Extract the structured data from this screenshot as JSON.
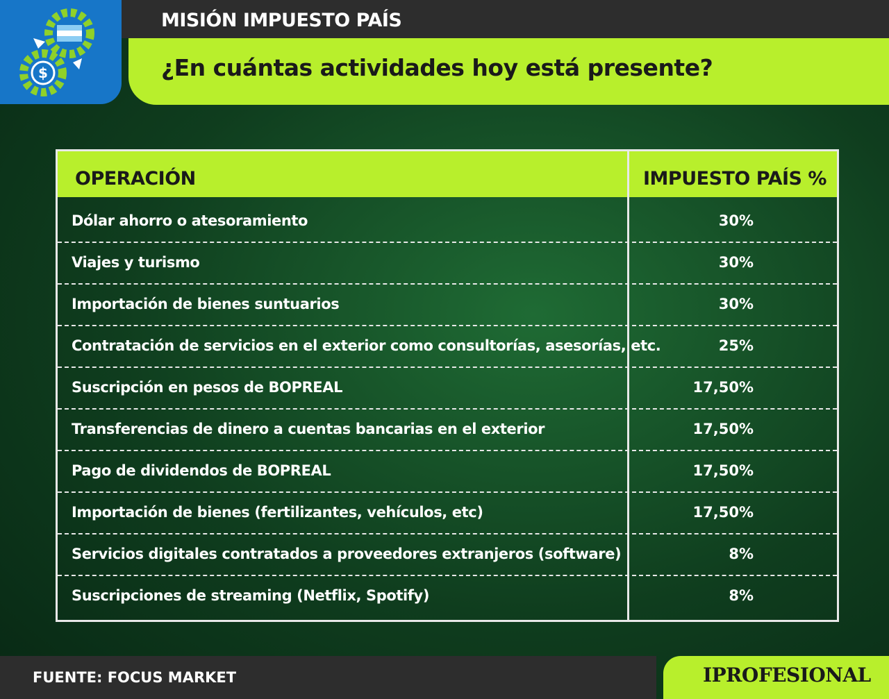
{
  "header": {
    "kicker": "MISIÓN IMPUESTO PAÍS",
    "title": "¿En cuántas actividades hoy está presente?"
  },
  "table": {
    "columns": [
      "OPERACIÓN",
      "IMPUESTO PAÍS %"
    ],
    "rows": [
      [
        "Dólar ahorro o atesoramiento",
        "30%"
      ],
      [
        "Viajes y turismo",
        "30%"
      ],
      [
        "Importación de bienes suntuarios",
        "30%"
      ],
      [
        "Contratación de servicios en el exterior como consultorías, asesorías, etc.",
        "25%"
      ],
      [
        "Suscripción en pesos de BOPREAL",
        "17,50%"
      ],
      [
        "Transferencias de dinero a cuentas bancarias en el exterior",
        "17,50%"
      ],
      [
        "Pago de dividendos de BOPREAL",
        "17,50%"
      ],
      [
        "Importación de bienes (fertilizantes, vehículos, etc)",
        "17,50%"
      ],
      [
        "Servicios digitales contratados a proveedores extranjeros (software)",
        "8%"
      ],
      [
        "Suscripciones de streaming (Netflix, Spotify)",
        "8%"
      ]
    ]
  },
  "footer": {
    "source": "FUENTE: FOCUS MARKET",
    "brand": "IPROFESIONAL"
  }
}
